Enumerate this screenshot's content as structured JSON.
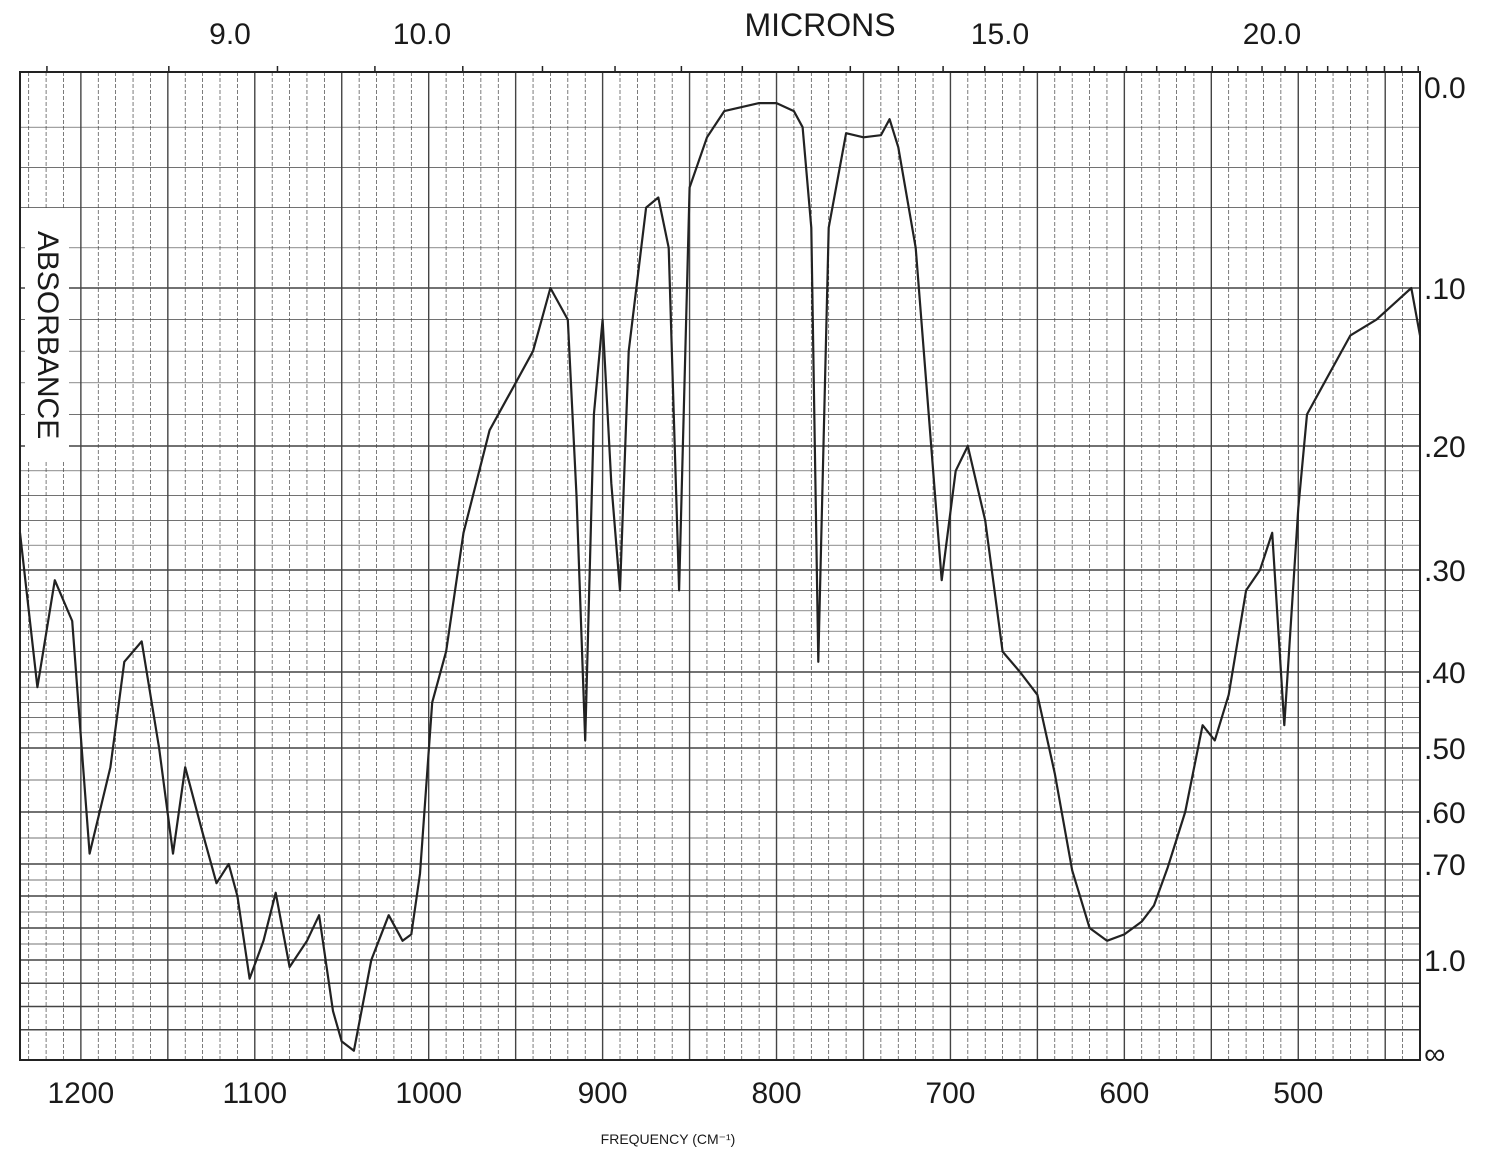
{
  "chart_data": {
    "type": "line",
    "title": "",
    "top_axis_label": "MICRONS",
    "top_ticks": [
      "9.0",
      "10.0",
      "15.0",
      "20.0"
    ],
    "xlabel": "FREQUENCY (CM⁻¹)",
    "ylabel": "ABSORBANCE",
    "x_ticks": [
      "1200",
      "1100",
      "1000",
      "900",
      "800",
      "700",
      "600",
      "500"
    ],
    "y_ticks": [
      "0.0",
      ".10",
      ".20",
      ".30",
      ".40",
      ".50",
      ".60",
      ".70",
      "1.0",
      "∞"
    ],
    "xlim": [
      1235,
      430
    ],
    "ylim": [
      0.0,
      "∞"
    ],
    "y_scale": "log (absorbance)",
    "grid": true,
    "series": [
      {
        "color": "#222222",
        "x": [
          1235,
          1225,
          1215,
          1205,
          1195,
          1183,
          1175,
          1165,
          1155,
          1147,
          1140,
          1130,
          1122,
          1115,
          1110,
          1103,
          1095,
          1088,
          1080,
          1070,
          1063,
          1055,
          1050,
          1043,
          1033,
          1023,
          1015,
          1010,
          1005,
          998,
          990,
          980,
          965,
          950,
          940,
          930,
          920,
          915,
          910,
          905,
          900,
          895,
          890,
          885,
          875,
          868,
          862,
          856,
          850,
          840,
          830,
          820,
          810,
          800,
          790,
          785,
          780,
          776,
          770,
          760,
          750,
          740,
          735,
          730,
          720,
          705,
          697,
          690,
          680,
          670,
          660,
          650,
          640,
          630,
          620,
          610,
          600,
          590,
          583,
          575,
          565,
          555,
          548,
          540,
          530,
          522,
          515,
          508,
          500,
          495,
          485,
          470,
          455,
          445,
          435,
          430
        ],
        "y": [
          0.27,
          0.42,
          0.31,
          0.35,
          0.68,
          0.53,
          0.39,
          0.37,
          0.5,
          0.68,
          0.53,
          0.64,
          0.76,
          0.7,
          0.8,
          1.08,
          0.94,
          0.79,
          1.03,
          0.94,
          0.86,
          1.22,
          1.35,
          1.39,
          1.0,
          0.86,
          0.94,
          0.92,
          0.73,
          0.44,
          0.38,
          0.27,
          0.19,
          0.16,
          0.14,
          0.1,
          0.12,
          0.24,
          0.49,
          0.18,
          0.12,
          0.23,
          0.32,
          0.14,
          0.06,
          0.055,
          0.08,
          0.32,
          0.05,
          0.025,
          0.012,
          0.01,
          0.008,
          0.008,
          0.012,
          0.02,
          0.07,
          0.39,
          0.07,
          0.023,
          0.025,
          0.024,
          0.016,
          0.03,
          0.08,
          0.31,
          0.22,
          0.2,
          0.26,
          0.38,
          0.4,
          0.43,
          0.54,
          0.72,
          0.9,
          0.94,
          0.92,
          0.88,
          0.83,
          0.71,
          0.6,
          0.47,
          0.49,
          0.43,
          0.32,
          0.3,
          0.27,
          0.47,
          0.25,
          0.18,
          0.16,
          0.13,
          0.12,
          0.11,
          0.1,
          0.13
        ]
      }
    ]
  }
}
